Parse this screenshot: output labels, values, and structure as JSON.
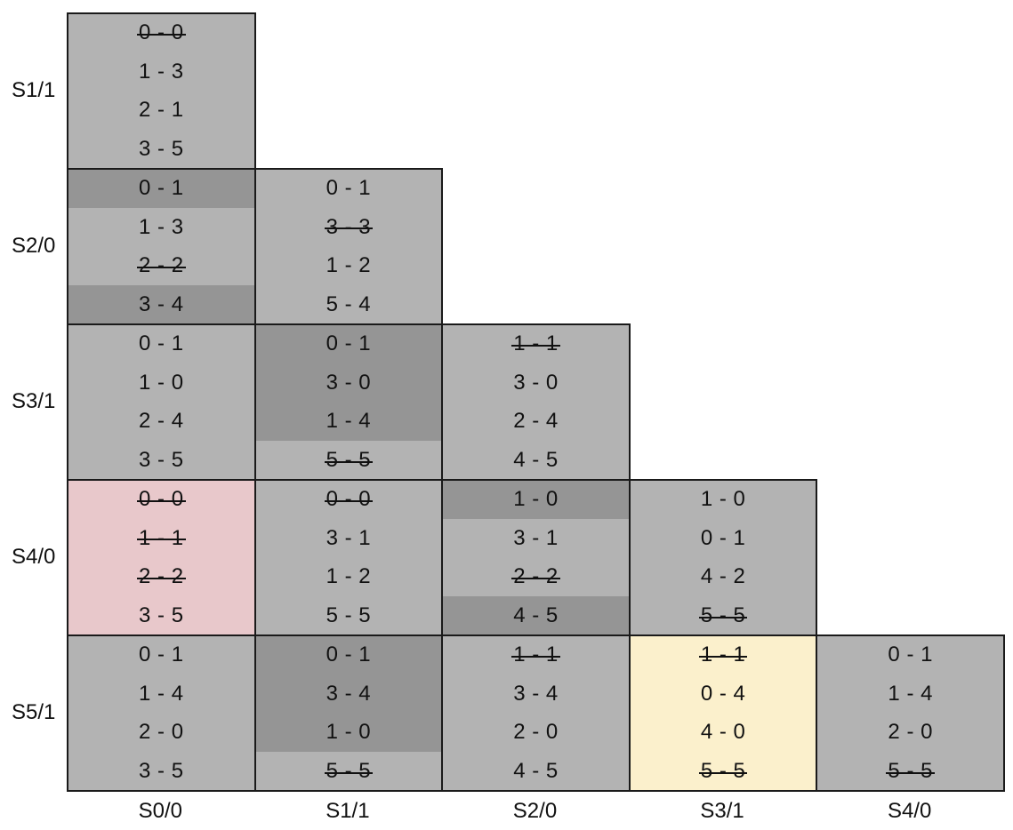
{
  "row_labels": [
    "S1/1",
    "S2/0",
    "S3/1",
    "S4/0",
    "S5/1"
  ],
  "col_labels": [
    "S0/0",
    "S1/1",
    "S2/0",
    "S3/1",
    "S4/0"
  ],
  "colors": {
    "default": "#b3b3b3",
    "dark": "#959595",
    "pink": "#e8c8cb",
    "yellow": "#fbf0cc"
  },
  "cells": [
    {
      "row": 0,
      "col": 0,
      "bg": "default",
      "entries": [
        {
          "text": "0 - 0",
          "strike": true,
          "dark": false
        },
        {
          "text": "1 - 3",
          "strike": false,
          "dark": false
        },
        {
          "text": "2 - 1",
          "strike": false,
          "dark": false
        },
        {
          "text": "3 - 5",
          "strike": false,
          "dark": false
        }
      ]
    },
    {
      "row": 1,
      "col": 0,
      "bg": "default",
      "entries": [
        {
          "text": "0 - 1",
          "strike": false,
          "dark": true
        },
        {
          "text": "1 - 3",
          "strike": false,
          "dark": false
        },
        {
          "text": "2 - 2",
          "strike": true,
          "dark": false
        },
        {
          "text": "3 - 4",
          "strike": false,
          "dark": true
        }
      ]
    },
    {
      "row": 1,
      "col": 1,
      "bg": "default",
      "entries": [
        {
          "text": "0 - 1",
          "strike": false,
          "dark": false
        },
        {
          "text": "3 - 3",
          "strike": true,
          "dark": false
        },
        {
          "text": "1 - 2",
          "strike": false,
          "dark": false
        },
        {
          "text": "5 - 4",
          "strike": false,
          "dark": false
        }
      ]
    },
    {
      "row": 2,
      "col": 0,
      "bg": "default",
      "entries": [
        {
          "text": "0 - 1",
          "strike": false,
          "dark": false
        },
        {
          "text": "1 - 0",
          "strike": false,
          "dark": false
        },
        {
          "text": "2 - 4",
          "strike": false,
          "dark": false
        },
        {
          "text": "3 - 5",
          "strike": false,
          "dark": false
        }
      ]
    },
    {
      "row": 2,
      "col": 1,
      "bg": "default",
      "entries": [
        {
          "text": "0 - 1",
          "strike": false,
          "dark": true
        },
        {
          "text": "3 - 0",
          "strike": false,
          "dark": true
        },
        {
          "text": "1 - 4",
          "strike": false,
          "dark": true
        },
        {
          "text": "5 - 5",
          "strike": true,
          "dark": false
        }
      ]
    },
    {
      "row": 2,
      "col": 2,
      "bg": "default",
      "entries": [
        {
          "text": "1 - 1",
          "strike": true,
          "dark": false
        },
        {
          "text": "3 - 0",
          "strike": false,
          "dark": false
        },
        {
          "text": "2 - 4",
          "strike": false,
          "dark": false
        },
        {
          "text": "4 - 5",
          "strike": false,
          "dark": false
        }
      ]
    },
    {
      "row": 3,
      "col": 0,
      "bg": "pink",
      "entries": [
        {
          "text": "0 - 0",
          "strike": true,
          "dark": false
        },
        {
          "text": "1 - 1",
          "strike": true,
          "dark": false
        },
        {
          "text": "2 - 2",
          "strike": true,
          "dark": false
        },
        {
          "text": "3 - 5",
          "strike": false,
          "dark": false
        }
      ]
    },
    {
      "row": 3,
      "col": 1,
      "bg": "default",
      "entries": [
        {
          "text": "0 - 0",
          "strike": true,
          "dark": false
        },
        {
          "text": "3 - 1",
          "strike": false,
          "dark": false
        },
        {
          "text": "1 - 2",
          "strike": false,
          "dark": false
        },
        {
          "text": "5 - 5",
          "strike": false,
          "dark": false
        }
      ]
    },
    {
      "row": 3,
      "col": 2,
      "bg": "default",
      "entries": [
        {
          "text": "1 - 0",
          "strike": false,
          "dark": true
        },
        {
          "text": "3 - 1",
          "strike": false,
          "dark": false
        },
        {
          "text": "2 - 2",
          "strike": true,
          "dark": false
        },
        {
          "text": "4 - 5",
          "strike": false,
          "dark": true
        }
      ]
    },
    {
      "row": 3,
      "col": 3,
      "bg": "default",
      "entries": [
        {
          "text": "1 - 0",
          "strike": false,
          "dark": false
        },
        {
          "text": "0 - 1",
          "strike": false,
          "dark": false
        },
        {
          "text": "4 - 2",
          "strike": false,
          "dark": false
        },
        {
          "text": "5 - 5",
          "strike": true,
          "dark": false
        }
      ]
    },
    {
      "row": 4,
      "col": 0,
      "bg": "default",
      "entries": [
        {
          "text": "0 - 1",
          "strike": false,
          "dark": false
        },
        {
          "text": "1 - 4",
          "strike": false,
          "dark": false
        },
        {
          "text": "2 - 0",
          "strike": false,
          "dark": false
        },
        {
          "text": "3 - 5",
          "strike": false,
          "dark": false
        }
      ]
    },
    {
      "row": 4,
      "col": 1,
      "bg": "default",
      "entries": [
        {
          "text": "0 - 1",
          "strike": false,
          "dark": true
        },
        {
          "text": "3 - 4",
          "strike": false,
          "dark": true
        },
        {
          "text": "1 - 0",
          "strike": false,
          "dark": true
        },
        {
          "text": "5 - 5",
          "strike": true,
          "dark": false
        }
      ]
    },
    {
      "row": 4,
      "col": 2,
      "bg": "default",
      "entries": [
        {
          "text": "1 - 1",
          "strike": true,
          "dark": false
        },
        {
          "text": "3 - 4",
          "strike": false,
          "dark": false
        },
        {
          "text": "2 - 0",
          "strike": false,
          "dark": false
        },
        {
          "text": "4 - 5",
          "strike": false,
          "dark": false
        }
      ]
    },
    {
      "row": 4,
      "col": 3,
      "bg": "yellow",
      "entries": [
        {
          "text": "1 - 1",
          "strike": true,
          "dark": false
        },
        {
          "text": "0 - 4",
          "strike": false,
          "dark": false
        },
        {
          "text": "4 - 0",
          "strike": false,
          "dark": false
        },
        {
          "text": "5 - 5",
          "strike": true,
          "dark": false
        }
      ]
    },
    {
      "row": 4,
      "col": 4,
      "bg": "default",
      "entries": [
        {
          "text": "0 - 1",
          "strike": false,
          "dark": false
        },
        {
          "text": "1 - 4",
          "strike": false,
          "dark": false
        },
        {
          "text": "2 - 0",
          "strike": false,
          "dark": false
        },
        {
          "text": "5 - 5",
          "strike": true,
          "dark": false
        }
      ]
    }
  ]
}
